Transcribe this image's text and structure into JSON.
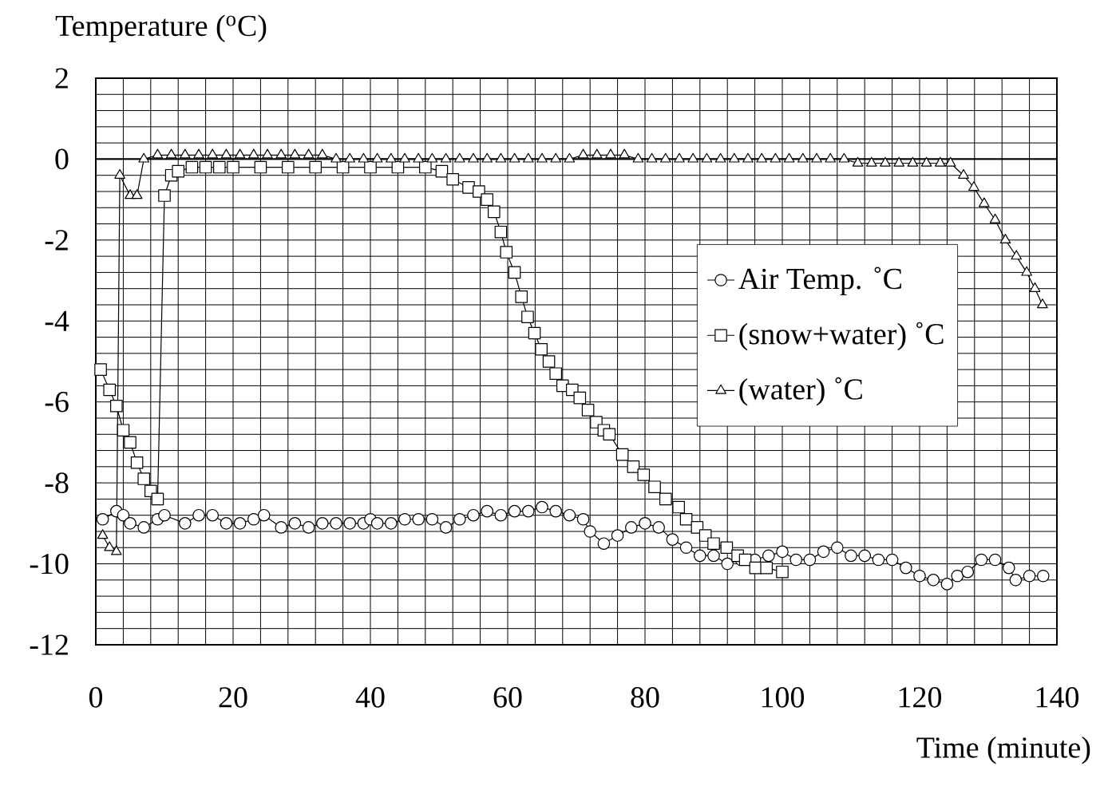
{
  "chart_data": {
    "type": "line",
    "xlabel": "Time (minute)",
    "ylabel": "Temperature ($^{o}$C)",
    "xlim": [
      0,
      140
    ],
    "xticks": [
      0,
      20,
      40,
      60,
      80,
      100,
      120,
      140
    ],
    "ylim": [
      -12,
      2
    ],
    "yticks": [
      -12,
      -10,
      -8,
      -6,
      -4,
      -2,
      0,
      2
    ],
    "grid": true,
    "legend": "right",
    "line_style": "solid",
    "ref_lines": [
      {
        "axis": "y",
        "value": 0
      }
    ],
    "series": [
      {
        "name": "Air Temp. ˚C",
        "color": "#000000",
        "marker": "circle",
        "x": [
          1,
          3,
          4,
          5,
          7,
          9,
          10,
          13,
          15,
          17,
          19,
          21,
          23,
          24.5,
          27,
          29,
          31,
          33,
          35,
          37,
          39,
          40,
          41,
          43,
          45,
          47,
          49,
          51,
          53,
          55,
          57,
          59,
          61,
          63,
          65,
          67,
          69,
          71,
          72,
          74,
          76,
          78,
          80,
          82,
          84,
          86,
          88,
          90,
          92,
          94,
          96,
          98,
          100,
          102,
          104,
          106,
          108,
          110,
          112,
          114,
          116,
          118,
          120,
          122,
          124,
          125.5,
          127,
          129,
          131,
          133,
          134,
          136,
          138
        ],
        "values": [
          -8.9,
          -8.7,
          -8.8,
          -9.0,
          -9.1,
          -8.9,
          -8.8,
          -9.0,
          -8.8,
          -8.8,
          -9.0,
          -9.0,
          -8.9,
          -8.8,
          -9.1,
          -9.0,
          -9.1,
          -9.0,
          -9.0,
          -9.0,
          -9.0,
          -8.9,
          -9.0,
          -9.0,
          -8.9,
          -8.9,
          -8.9,
          -9.1,
          -8.9,
          -8.8,
          -8.7,
          -8.8,
          -8.7,
          -8.7,
          -8.6,
          -8.7,
          -8.8,
          -8.9,
          -9.2,
          -9.5,
          -9.3,
          -9.1,
          -9.0,
          -9.1,
          -9.4,
          -9.6,
          -9.8,
          -9.8,
          -10.0,
          -9.9,
          -9.9,
          -9.8,
          -9.7,
          -9.9,
          -9.9,
          -9.7,
          -9.6,
          -9.8,
          -9.8,
          -9.9,
          -9.9,
          -10.1,
          -10.3,
          -10.4,
          -10.5,
          -10.3,
          -10.2,
          -9.9,
          -9.9,
          -10.1,
          -10.4,
          -10.3,
          -10.3
        ]
      },
      {
        "name": "(snow+water) ˚C",
        "color": "#000000",
        "marker": "square",
        "x": [
          0.7,
          2,
          3,
          4,
          5,
          6,
          7,
          8,
          9,
          10,
          11,
          12,
          14,
          16,
          18,
          20,
          24,
          28,
          32,
          36,
          40,
          44,
          48,
          50.4,
          52,
          54.3,
          55.8,
          57,
          58,
          59,
          59.8,
          61,
          62,
          62.9,
          63.9,
          64.9,
          66,
          67,
          68,
          69.4,
          70.5,
          71.7,
          72.9,
          74,
          74.8,
          76.7,
          78.3,
          79.8,
          81.4,
          83,
          84.9,
          86,
          87.6,
          88.8,
          90,
          91.9,
          93.5,
          94.6,
          96.1,
          97.7,
          100
        ],
        "values": [
          -5.2,
          -5.7,
          -6.1,
          -6.7,
          -7.0,
          -7.5,
          -7.9,
          -8.2,
          -8.4,
          -0.9,
          -0.4,
          -0.3,
          -0.2,
          -0.2,
          -0.2,
          -0.2,
          -0.2,
          -0.2,
          -0.2,
          -0.2,
          -0.2,
          -0.2,
          -0.2,
          -0.3,
          -0.5,
          -0.7,
          -0.8,
          -1.0,
          -1.3,
          -1.8,
          -2.3,
          -2.8,
          -3.4,
          -3.9,
          -4.3,
          -4.7,
          -5.0,
          -5.3,
          -5.6,
          -5.7,
          -5.9,
          -6.2,
          -6.5,
          -6.7,
          -6.8,
          -7.3,
          -7.6,
          -7.8,
          -8.1,
          -8.4,
          -8.6,
          -8.9,
          -9.1,
          -9.3,
          -9.5,
          -9.6,
          -9.8,
          -9.9,
          -10.1,
          -10.1,
          -10.2
        ]
      },
      {
        "name": "(water) ˚C",
        "color": "#000000",
        "marker": "triangle",
        "x": [
          1,
          2,
          3,
          3.5,
          5,
          6,
          7,
          9,
          11,
          13,
          15,
          17,
          19,
          21,
          23,
          25,
          27,
          29,
          31,
          33,
          35,
          37,
          39,
          41,
          43,
          45,
          47,
          49,
          51,
          53,
          55,
          57,
          59,
          61,
          63,
          65,
          67,
          69,
          71,
          73,
          75,
          77,
          79,
          81,
          83,
          85,
          87,
          89,
          91,
          93,
          95,
          97,
          99,
          101,
          103,
          105,
          107,
          109,
          111,
          113,
          115,
          117,
          119,
          121,
          123,
          124.5,
          126.4,
          127.9,
          129.4,
          131,
          132.5,
          134.1,
          135.6,
          136.8,
          137.9
        ],
        "values": [
          -9.3,
          -9.6,
          -9.7,
          -0.4,
          -0.9,
          -0.9,
          0.0,
          0.1,
          0.1,
          0.1,
          0.1,
          0.1,
          0.1,
          0.1,
          0.1,
          0.1,
          0.1,
          0.1,
          0.1,
          0.1,
          0.0,
          0.0,
          0.0,
          0.0,
          0.0,
          0.0,
          0.0,
          0.0,
          0.0,
          0.0,
          0.0,
          0.0,
          0.0,
          0.0,
          0.0,
          0.0,
          0.0,
          0.0,
          0.1,
          0.1,
          0.1,
          0.1,
          0.0,
          0.0,
          0.0,
          0.0,
          0.0,
          0.0,
          0.0,
          0.0,
          0.0,
          0.0,
          0.0,
          0.0,
          0.0,
          0.0,
          0.0,
          0.0,
          -0.1,
          -0.1,
          -0.1,
          -0.1,
          -0.1,
          -0.1,
          -0.1,
          -0.1,
          -0.4,
          -0.7,
          -1.1,
          -1.5,
          -2.0,
          -2.4,
          -2.8,
          -3.2,
          -3.6
        ]
      }
    ]
  }
}
